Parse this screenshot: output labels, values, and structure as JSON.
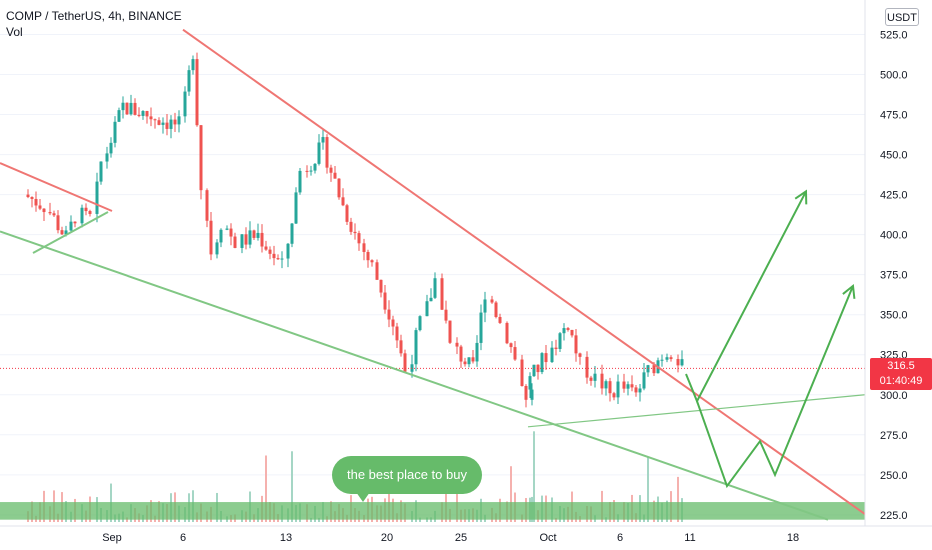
{
  "header": {
    "symbol_line": "COMP / TetherUS, 4h, BINANCE",
    "volume_label": "Vol"
  },
  "price_axis": {
    "unit_badge": "USDT",
    "last_price": "316.5",
    "countdown": "01:40:49"
  },
  "annotation": {
    "bubble_text": "the best place to buy"
  },
  "colors": {
    "up": "#26a69a",
    "down": "#ef5350",
    "resistance_line": "#ef7673",
    "support_line": "#81c784",
    "projection_arrow": "#4caf50",
    "buy_zone": "#66bb6a",
    "last_price_tag": "#f23645"
  },
  "chart_data": {
    "type": "candlestick",
    "title": "COMP / TetherUS, 4h, BINANCE",
    "ylim": [
      220,
      535
    ],
    "y_ticks": [
      225.0,
      250.0,
      275.0,
      300.0,
      325.0,
      350.0,
      375.0,
      400.0,
      425.0,
      450.0,
      475.0,
      500.0,
      525.0
    ],
    "x_ticks": [
      "Sep",
      "6",
      "13",
      "20",
      "25",
      "Oct",
      "6",
      "11",
      "18"
    ],
    "last_price": 316.5,
    "price_series": [
      {
        "t": "Aug 30",
        "close": 425
      },
      {
        "t": "Aug 31",
        "close": 418
      },
      {
        "t": "Sep 1",
        "close": 398
      },
      {
        "t": "Sep 2",
        "close": 412
      },
      {
        "t": "Sep 3",
        "close": 410
      },
      {
        "t": "Sep 4",
        "close": 445
      },
      {
        "t": "Sep 5",
        "close": 480
      },
      {
        "t": "Sep 6",
        "close": 468
      },
      {
        "t": "Sep 7",
        "close": 515
      },
      {
        "t": "Sep 8",
        "close": 430
      },
      {
        "t": "Sep 9",
        "close": 390
      },
      {
        "t": "Sep 10",
        "close": 408
      },
      {
        "t": "Sep 11",
        "close": 395
      },
      {
        "t": "Sep 12",
        "close": 400
      },
      {
        "t": "Sep 13",
        "close": 380
      },
      {
        "t": "Sep 14",
        "close": 440
      },
      {
        "t": "Sep 15",
        "close": 455
      },
      {
        "t": "Sep 16",
        "close": 418
      },
      {
        "t": "Sep 17",
        "close": 395
      },
      {
        "t": "Sep 18",
        "close": 380
      },
      {
        "t": "Sep 19",
        "close": 345
      },
      {
        "t": "Sep 20",
        "close": 315
      },
      {
        "t": "Sep 21",
        "close": 345
      },
      {
        "t": "Sep 22",
        "close": 372
      },
      {
        "t": "Sep 23",
        "close": 330
      },
      {
        "t": "Sep 24",
        "close": 315
      },
      {
        "t": "Sep 25",
        "close": 365
      },
      {
        "t": "Sep 26",
        "close": 345
      },
      {
        "t": "Sep 27",
        "close": 322
      },
      {
        "t": "Sep 28",
        "close": 295
      },
      {
        "t": "Sep 29",
        "close": 305
      },
      {
        "t": "Sep 30",
        "close": 325
      },
      {
        "t": "Oct 1",
        "close": 345
      },
      {
        "t": "Oct 2",
        "close": 318
      },
      {
        "t": "Oct 3",
        "close": 310
      },
      {
        "t": "Oct 4",
        "close": 300
      },
      {
        "t": "Oct 5",
        "close": 305
      },
      {
        "t": "Oct 6",
        "close": 300
      },
      {
        "t": "Oct 7",
        "close": 315
      },
      {
        "t": "Oct 8",
        "close": 325
      },
      {
        "t": "Oct 9",
        "close": 328
      },
      {
        "t": "Oct 10",
        "close": 316.5
      }
    ],
    "trend_lines": [
      {
        "name": "descending resistance",
        "from": {
          "t": "Sep 6",
          "price": 528
        },
        "to": {
          "t": "Oct 23",
          "price": 225
        }
      },
      {
        "name": "support",
        "from": {
          "t": "Aug 28",
          "price": 402
        },
        "to": {
          "t": "Oct 21",
          "price": 222
        }
      },
      {
        "name": "rising support",
        "from": {
          "t": "Sep 29",
          "price": 280
        },
        "to": {
          "t": "Oct 24",
          "price": 304
        }
      }
    ],
    "projections": [
      {
        "name": "upper path",
        "points": [
          {
            "t": "Oct 10",
            "price": 313
          },
          {
            "t": "Oct 11",
            "price": 296
          },
          {
            "t": "Oct 18",
            "price": 427
          }
        ]
      },
      {
        "name": "lower path",
        "points": [
          {
            "t": "Oct 11",
            "price": 296
          },
          {
            "t": "Oct 12",
            "price": 243
          },
          {
            "t": "Oct 15",
            "price": 271
          },
          {
            "t": "Oct 16",
            "price": 250
          },
          {
            "t": "Oct 20",
            "price": 368
          }
        ]
      }
    ],
    "buy_zone": {
      "price_low": 222,
      "price_high": 233
    }
  }
}
